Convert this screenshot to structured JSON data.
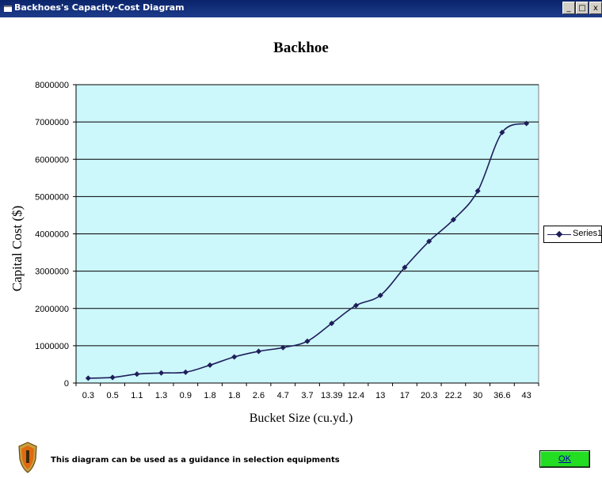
{
  "window": {
    "title": "Backhoes's Capacity-Cost Diagram",
    "buttons": {
      "minimize": "_",
      "maximize": "□",
      "close": "x"
    }
  },
  "chart_data": {
    "type": "line",
    "title": "Backhoe",
    "xlabel": "Bucket Size (cu.yd.)",
    "ylabel": "Capital Cost ($)",
    "categories": [
      "0.3",
      "0.5",
      "1.1",
      "1.3",
      "0.9",
      "1.8",
      "1.8",
      "2.6",
      "4.7",
      "3.7",
      "13.39",
      "12.4",
      "13",
      "17",
      "20.3",
      "22.2",
      "30",
      "36.6",
      "43"
    ],
    "series": [
      {
        "name": "Series1",
        "values": [
          130000,
          150000,
          240000,
          270000,
          290000,
          480000,
          700000,
          850000,
          950000,
          1120000,
          1600000,
          2080000,
          2350000,
          3100000,
          3800000,
          4380000,
          5150000,
          6720000,
          6960000
        ]
      }
    ],
    "ylim": [
      0,
      8000000
    ],
    "yticks": [
      "0",
      "1000000",
      "2000000",
      "3000000",
      "4000000",
      "5000000",
      "6000000",
      "7000000",
      "8000000"
    ],
    "grid": true,
    "legend": "right",
    "colors": {
      "plot_background": "#ccf7fb",
      "line": "#1e1e5a",
      "grid": "#000000"
    }
  },
  "footer": {
    "message": "This diagram can be used as a guidance in selection equipments",
    "ok_label": "OK"
  }
}
